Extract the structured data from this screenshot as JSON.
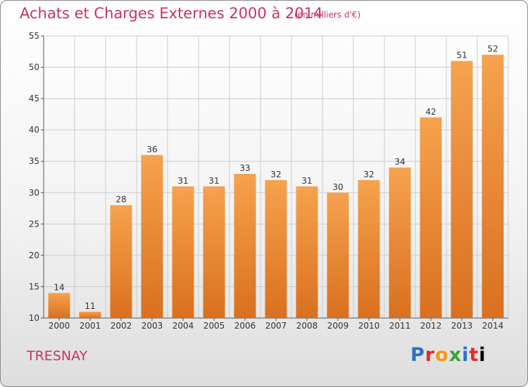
{
  "header": {
    "title": "Achats et Charges Externes 2000 à 2014",
    "unit": "(en milliers d'€)"
  },
  "footer": {
    "commune": "TRESNAY",
    "logo": "Proxiti"
  },
  "colors": {
    "title": "#c8326a",
    "bar_light": "#f6a24e",
    "bar_dark": "#d9701f",
    "grid": "#cccccc",
    "axis": "#555555"
  },
  "chart_data": {
    "type": "bar",
    "categories": [
      "2000",
      "2001",
      "2002",
      "2003",
      "2004",
      "2005",
      "2006",
      "2007",
      "2008",
      "2009",
      "2010",
      "2011",
      "2012",
      "2013",
      "2014"
    ],
    "values": [
      14,
      11,
      28,
      36,
      31,
      31,
      33,
      32,
      31,
      30,
      32,
      34,
      42,
      51,
      52
    ],
    "ylim": [
      10,
      55
    ],
    "yticks": [
      10,
      15,
      20,
      25,
      30,
      35,
      40,
      45,
      50,
      55
    ],
    "grid": true,
    "data_labels": true
  }
}
